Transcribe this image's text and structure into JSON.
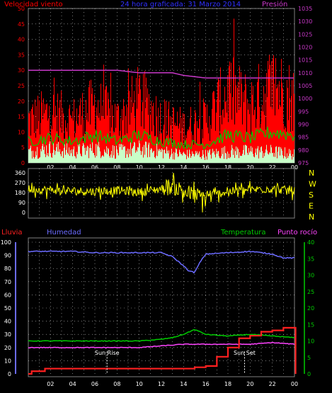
{
  "chart_data": [
    {
      "type": "area",
      "title": "24 hora graficada: 31 Marzo 2014",
      "left_label": "Velocidad viento",
      "right_label": "Presión",
      "x_ticks": [
        "02",
        "04",
        "06",
        "08",
        "10",
        "12",
        "14",
        "16",
        "18",
        "20",
        "22",
        "00"
      ],
      "y_left_ticks": [
        "0",
        "5",
        "10",
        "15",
        "20",
        "25",
        "30",
        "35",
        "40",
        "45",
        "50"
      ],
      "y_right_ticks": [
        "975",
        "980",
        "985",
        "990",
        "995",
        "1000",
        "1005",
        "1010",
        "1015",
        "1020",
        "1025",
        "1030",
        "1035"
      ],
      "ylim_left": [
        0,
        50
      ],
      "ylim_right": [
        975,
        1035
      ],
      "grid": true,
      "series": [
        {
          "name": "Presión",
          "color": "#c838c8",
          "x": [
            0,
            2,
            4,
            6,
            8,
            10,
            12,
            13,
            14,
            16,
            18,
            20,
            22,
            24
          ],
          "values": [
            1011,
            1011,
            1011,
            1011,
            1011,
            1010,
            1010,
            1010,
            1009,
            1008,
            1008,
            1008,
            1008,
            1008
          ]
        },
        {
          "name": "Velocidad viento",
          "color": "#ff0000",
          "x": [
            0,
            2,
            4,
            6,
            8,
            10,
            12,
            14,
            16,
            18,
            20,
            22,
            24
          ],
          "values": [
            12,
            14,
            12,
            16,
            12,
            18,
            12,
            10,
            12,
            20,
            16,
            22,
            18
          ]
        },
        {
          "color": "#00c800",
          "x": [
            0,
            2,
            4,
            6,
            8,
            10,
            12,
            14,
            16,
            18,
            20,
            22,
            24
          ],
          "values": [
            7,
            8,
            7,
            9,
            7,
            9,
            7,
            6,
            6,
            9,
            8,
            10,
            9
          ]
        },
        {
          "color": "#c8ffc8",
          "x": [
            0,
            2,
            4,
            6,
            8,
            10,
            12,
            14,
            16,
            18,
            20,
            22,
            24
          ],
          "values": [
            4,
            5,
            4,
            5,
            4,
            5,
            4,
            3,
            3,
            4,
            4,
            4,
            3
          ]
        }
      ]
    },
    {
      "type": "line",
      "y_ticks": [
        "360",
        "270",
        "180",
        "90",
        "0"
      ],
      "ylim": [
        0,
        360
      ],
      "y_right_labels": [
        "N",
        "W",
        "S",
        "E",
        "N"
      ],
      "grid": true,
      "series": [
        {
          "color": "#ffff00",
          "x": [
            0,
            2,
            4,
            6,
            8,
            10,
            12,
            13,
            14,
            15,
            16,
            18,
            20,
            22,
            24
          ],
          "values": [
            210,
            205,
            195,
            190,
            200,
            185,
            215,
            240,
            195,
            150,
            145,
            190,
            205,
            215,
            195
          ]
        }
      ]
    },
    {
      "type": "line",
      "labels": {
        "rain": "Lluvia",
        "humidity": "Humedad",
        "temperature": "Temperatura",
        "dewpoint": "Punto rocío"
      },
      "x_ticks": [
        "02",
        "04",
        "06",
        "08",
        "10",
        "12",
        "14",
        "16",
        "18",
        "20",
        "22",
        "00"
      ],
      "y_left_ticks": [
        "0",
        "10",
        "20",
        "30",
        "40",
        "50",
        "60",
        "70",
        "80",
        "90",
        "100"
      ],
      "y_right_ticks": [
        "0",
        "5",
        "10",
        "15",
        "20",
        "25",
        "30",
        "35",
        "40"
      ],
      "ylim_left": [
        0,
        100
      ],
      "ylim_right": [
        0,
        40
      ],
      "annotations": [
        {
          "text": "Sun Rise",
          "x": 7.1
        },
        {
          "text": "Sun Set",
          "x": 19.5
        }
      ],
      "series": [
        {
          "name": "Humedad",
          "color": "#6b6bff",
          "axis": "left",
          "x": [
            0,
            2,
            4,
            6,
            8,
            10,
            12,
            13,
            14,
            14.5,
            15,
            15.5,
            16,
            18,
            20,
            21,
            22,
            23,
            24
          ],
          "values": [
            93,
            93,
            93,
            92,
            92,
            92,
            92,
            89,
            82,
            78,
            77,
            85,
            91,
            92,
            93,
            92,
            91,
            88,
            88
          ]
        },
        {
          "name": "Temperatura",
          "color": "#00cc00",
          "axis": "right",
          "x": [
            0,
            2,
            4,
            6,
            8,
            10,
            12,
            13,
            14,
            15,
            16,
            18,
            20,
            22,
            24
          ],
          "values": [
            10,
            10,
            10,
            10,
            10,
            10,
            10.5,
            11,
            12,
            13.5,
            12,
            11.5,
            12,
            11.5,
            11
          ]
        },
        {
          "name": "Punto rocío",
          "color": "#ff44ff",
          "axis": "right",
          "x": [
            0,
            2,
            4,
            6,
            8,
            10,
            12,
            14,
            16,
            18,
            20,
            22,
            24
          ],
          "values": [
            8,
            8,
            8,
            8,
            8,
            8,
            8.5,
            9,
            9,
            9,
            9,
            9.5,
            9
          ]
        },
        {
          "name": "Lluvia",
          "color": "#ff2020",
          "axis": "left",
          "x": [
            0,
            0.3,
            1.5,
            2,
            10,
            15,
            16,
            17,
            18,
            19,
            20,
            21,
            22,
            23,
            24,
            24.1
          ],
          "values": [
            0,
            2,
            4,
            4,
            4,
            5,
            6,
            13,
            20,
            27,
            29,
            32,
            33,
            35,
            35,
            0
          ]
        }
      ]
    }
  ]
}
